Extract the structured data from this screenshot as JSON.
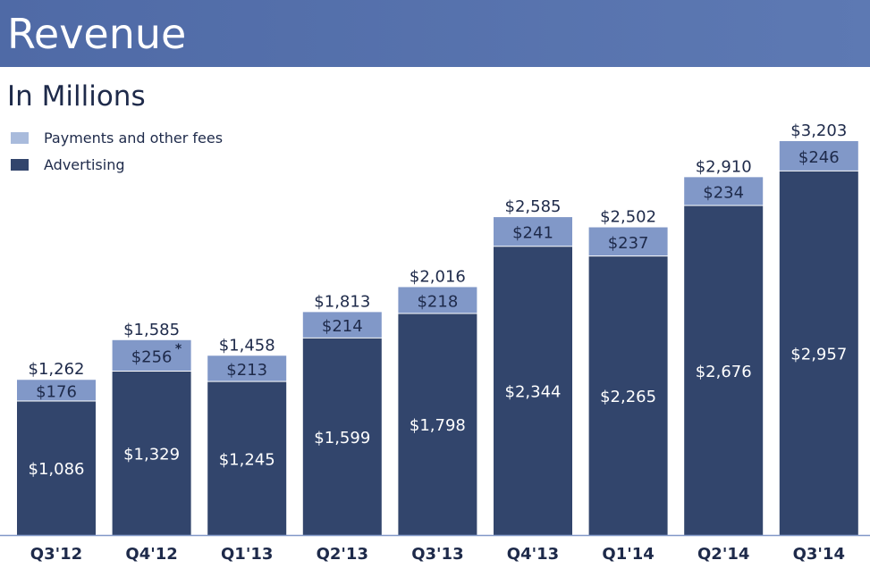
{
  "header": {
    "title": "Revenue"
  },
  "colors": {
    "header": "#5470a8",
    "payments": "#8198c8",
    "advertising": "#32456c",
    "legend_payments": "#a9bbdc",
    "text_dark": "#1e2a4a"
  },
  "chart_data": {
    "type": "bar",
    "stacked": true,
    "title": "Revenue",
    "subtitle": "In Millions",
    "categories": [
      "Q3'12",
      "Q4'12",
      "Q1'13",
      "Q2'13",
      "Q3'13",
      "Q4'13",
      "Q1'14",
      "Q2'14",
      "Q3'14"
    ],
    "series": [
      {
        "name": "Advertising",
        "values": [
          1086,
          1329,
          1245,
          1599,
          1798,
          2344,
          2265,
          2676,
          2957
        ],
        "labels": [
          "$1,086",
          "$1,329",
          "$1,245",
          "$1,599",
          "$1,798",
          "$2,344",
          "$2,265",
          "$2,676",
          "$2,957"
        ]
      },
      {
        "name": "Payments and other fees",
        "values": [
          176,
          256,
          213,
          214,
          218,
          241,
          237,
          234,
          246
        ],
        "labels": [
          "$176",
          "$256",
          "$213",
          "$214",
          "$218",
          "$241",
          "$237",
          "$234",
          "$246"
        ]
      }
    ],
    "totals": [
      1262,
      1585,
      1458,
      1813,
      2016,
      2585,
      2502,
      2910,
      3203
    ],
    "total_labels": [
      "$1,262",
      "$1,585",
      "$1,458",
      "$1,813",
      "$2,016",
      "$2,585",
      "$2,502",
      "$2,910",
      "$3,203"
    ],
    "annotations": [
      {
        "category": "Q4'12",
        "series": "Payments and other fees",
        "text": "*"
      }
    ],
    "legend": [
      "Payments and other fees",
      "Advertising"
    ],
    "legend_position": "top-left",
    "ylim": [
      0,
      3203
    ],
    "grid": false
  }
}
